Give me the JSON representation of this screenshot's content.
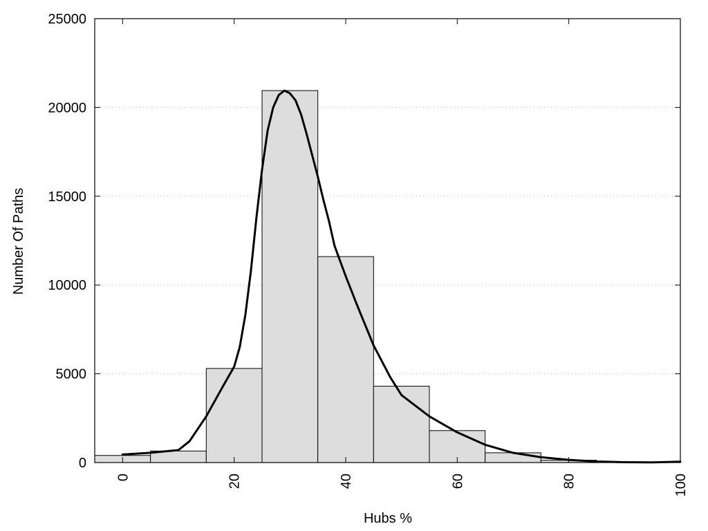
{
  "chart_data": {
    "type": "bar",
    "subtype": "histogram-with-density-curve",
    "title": "",
    "xlabel": "Hubs %",
    "ylabel": "Number Of Paths",
    "xlim": [
      -5,
      100
    ],
    "ylim": [
      0,
      25000
    ],
    "x_ticks": [
      0,
      20,
      40,
      60,
      80,
      100
    ],
    "y_ticks": [
      0,
      5000,
      10000,
      15000,
      20000,
      25000
    ],
    "grid": "horizontal dotted",
    "bin_width": 10,
    "bins": [
      {
        "center": 0,
        "value": 400
      },
      {
        "center": 10,
        "value": 650
      },
      {
        "center": 20,
        "value": 5300
      },
      {
        "center": 30,
        "value": 20950
      },
      {
        "center": 40,
        "value": 11600
      },
      {
        "center": 50,
        "value": 4300
      },
      {
        "center": 60,
        "value": 1800
      },
      {
        "center": 70,
        "value": 550
      },
      {
        "center": 80,
        "value": 130
      },
      {
        "center": 90,
        "value": 20
      }
    ],
    "curve": {
      "x": [
        0,
        5,
        10,
        12,
        15,
        18,
        20,
        21,
        22,
        23,
        24,
        25,
        26,
        27,
        28,
        29,
        30,
        31,
        32,
        33,
        34,
        35,
        36,
        37,
        38,
        40,
        42,
        45,
        48,
        50,
        55,
        60,
        65,
        70,
        75,
        80,
        85,
        90,
        95,
        100
      ],
      "y": [
        450,
        550,
        700,
        1200,
        2600,
        4300,
        5400,
        6500,
        8300,
        10800,
        13800,
        16500,
        18700,
        20000,
        20700,
        20950,
        20800,
        20400,
        19600,
        18500,
        17300,
        16100,
        14800,
        13600,
        12200,
        10500,
        8900,
        6600,
        4800,
        3800,
        2600,
        1700,
        1000,
        550,
        300,
        150,
        60,
        20,
        10,
        50
      ]
    },
    "colors": {
      "bar_fill": "#dddddd",
      "bar_stroke": "#000000",
      "curve": "#000000",
      "grid": "#bbbbbb"
    }
  }
}
